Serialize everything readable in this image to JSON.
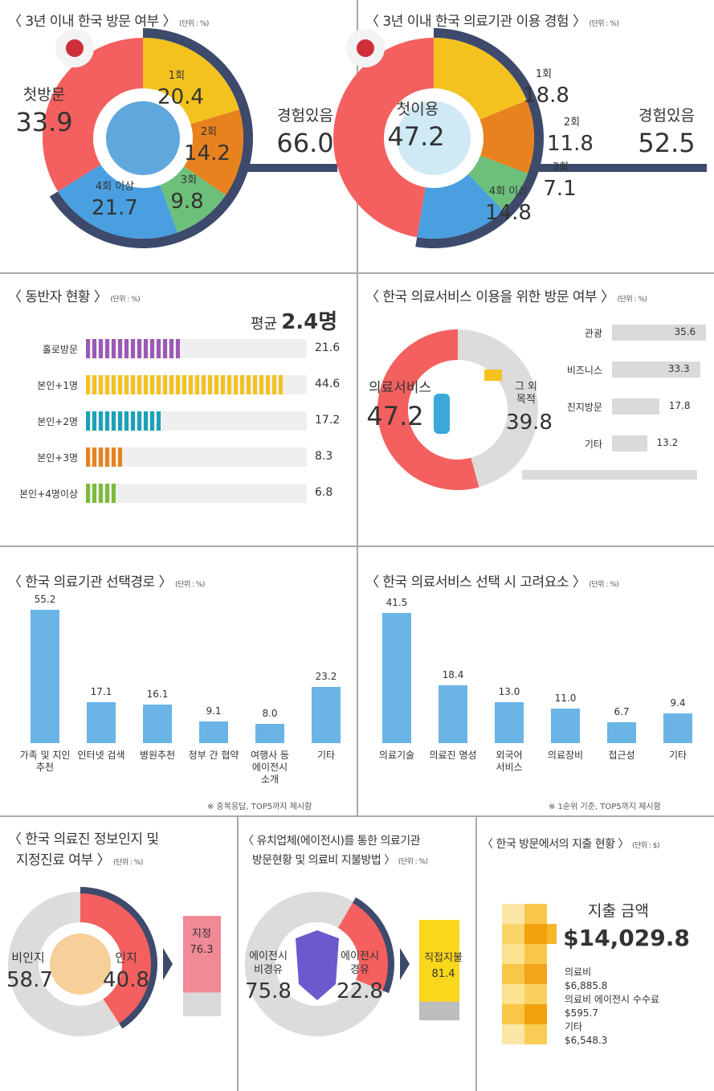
{
  "panels": {
    "visit": {
      "title": "〈 3년 이내 한국 방문 여부 〉",
      "unit": "(단위 : %)"
    },
    "medical_use": {
      "title": "〈 3년 이내 한국 의료기관 이용 경험 〉",
      "unit": "(단위 : %)"
    },
    "companion": {
      "title": "〈 동반자 현황 〉",
      "unit": "(단위 : %)",
      "avg_label": "평균",
      "avg_value": "2.4명"
    },
    "purpose": {
      "title": "〈 한국 의료서비스 이용을 위한 방문 여부 〉",
      "unit": "(단위 : %)"
    },
    "route": {
      "title": "〈 한국 의료기관 선택경로 〉",
      "unit": "(단위 : %)",
      "note": "※ 중복응답, TOP5까지 제시함"
    },
    "factors": {
      "title": "〈 한국 의료서비스 선택 시 고려요소 〉",
      "unit": "(단위 : %)",
      "note": "※ 1순위 기준, TOP5까지 제시함"
    },
    "awareness": {
      "title1": "〈 한국 의료진 정보인지 및",
      "title2": "지정진료 여부 〉",
      "unit": "(단위 : %)"
    },
    "agency": {
      "title1": "〈 유치업체(에이전시)를 통한 의료기관",
      "title2": "방문현황 및 의료비 지불방법 〉",
      "unit": "(단위 : %)"
    },
    "spending": {
      "title": "〈 한국 방문에서의 지출 현황 〉",
      "unit": "(단위 : $)"
    }
  },
  "colors": {
    "red": "#f4605f",
    "yellow": "#f4c21f",
    "orange": "#e8821e",
    "green": "#6cc07a",
    "blue": "#4a9fe0",
    "navy": "#3d4a6b",
    "gray": "#dcdcdc",
    "bar_blue": "#6ab4e6",
    "pink": "#f08a96"
  },
  "chart_data": [
    {
      "type": "pie",
      "title": "3년 이내 한국 방문 여부",
      "slices": [
        {
          "label": "1회",
          "value": 20.4
        },
        {
          "label": "2회",
          "value": 14.2
        },
        {
          "label": "3회",
          "value": 9.8
        },
        {
          "label": "4회 이상",
          "value": 21.7
        },
        {
          "label": "첫방문",
          "value": 33.9
        }
      ],
      "total_label": "경험있음",
      "total_value": "66.0"
    },
    {
      "type": "pie",
      "title": "3년 이내 한국 의료기관 이용 경험",
      "slices": [
        {
          "label": "1회",
          "value": 18.8
        },
        {
          "label": "2회",
          "value": 11.8
        },
        {
          "label": "3회",
          "value": 7.1
        },
        {
          "label": "4회 이상",
          "value": 14.8
        },
        {
          "label": "첫이용",
          "value": 47.2
        }
      ],
      "total_label": "경험있음",
      "total_value": "52.5"
    },
    {
      "type": "bar",
      "title": "동반자 현황",
      "categories": [
        "홀로방문",
        "본인+1명",
        "본인+2명",
        "본인+3명",
        "본인+4명이상"
      ],
      "values": [
        21.6,
        44.6,
        17.2,
        8.3,
        6.8
      ]
    },
    {
      "type": "pie",
      "title": "한국 의료서비스 이용을 위한 방문 여부",
      "slices": [
        {
          "label": "의료서비스",
          "value": 47.2
        },
        {
          "label": "그 외 목적",
          "value": 39.8
        }
      ],
      "breakdown": {
        "categories": [
          "관광",
          "비즈니스",
          "친지방문",
          "기타"
        ],
        "values": [
          35.6,
          33.3,
          17.8,
          13.2
        ]
      }
    },
    {
      "type": "bar",
      "title": "한국 의료기관 선택경로",
      "categories": [
        "가족 및 지인 추천",
        "인터넷 검색",
        "병원추천",
        "정부 간 협약",
        "여행사 등 에이전시 소개",
        "기타"
      ],
      "values": [
        55.2,
        17.1,
        16.1,
        9.1,
        8.0,
        23.2
      ]
    },
    {
      "type": "bar",
      "title": "한국 의료서비스 선택 시 고려요소",
      "categories": [
        "의료기술",
        "의료진 명성",
        "외국어 서비스",
        "의료장비",
        "접근성",
        "기타"
      ],
      "values": [
        41.5,
        18.4,
        13.0,
        11.0,
        6.7,
        9.4
      ]
    },
    {
      "type": "pie",
      "title": "한국 의료진 정보인지 및 지정진료 여부",
      "slices": [
        {
          "label": "인지",
          "value": 40.8
        },
        {
          "label": "비인지",
          "value": 58.7
        }
      ],
      "sub_bar": {
        "label": "지정",
        "value": 76.3
      }
    },
    {
      "type": "pie",
      "title": "유치업체(에이전시)를 통한 의료기관 방문현황 및 의료비 지불방법",
      "slices": [
        {
          "label": "에이전시 경유",
          "value": 22.8
        },
        {
          "label": "에이전시 비경유",
          "value": 75.8
        }
      ],
      "sub_bar": {
        "label": "직접지불",
        "value": 81.4
      }
    },
    {
      "type": "table",
      "title": "한국 방문에서의 지출 현황",
      "total_label": "지출 금액",
      "total_value": "$14,029.8",
      "items": [
        {
          "label": "의료비",
          "value": "$6,885.8"
        },
        {
          "label": "의료비 에이전시 수수료",
          "value": "$595.7"
        },
        {
          "label": "기타",
          "value": "$6,548.3"
        }
      ]
    }
  ]
}
